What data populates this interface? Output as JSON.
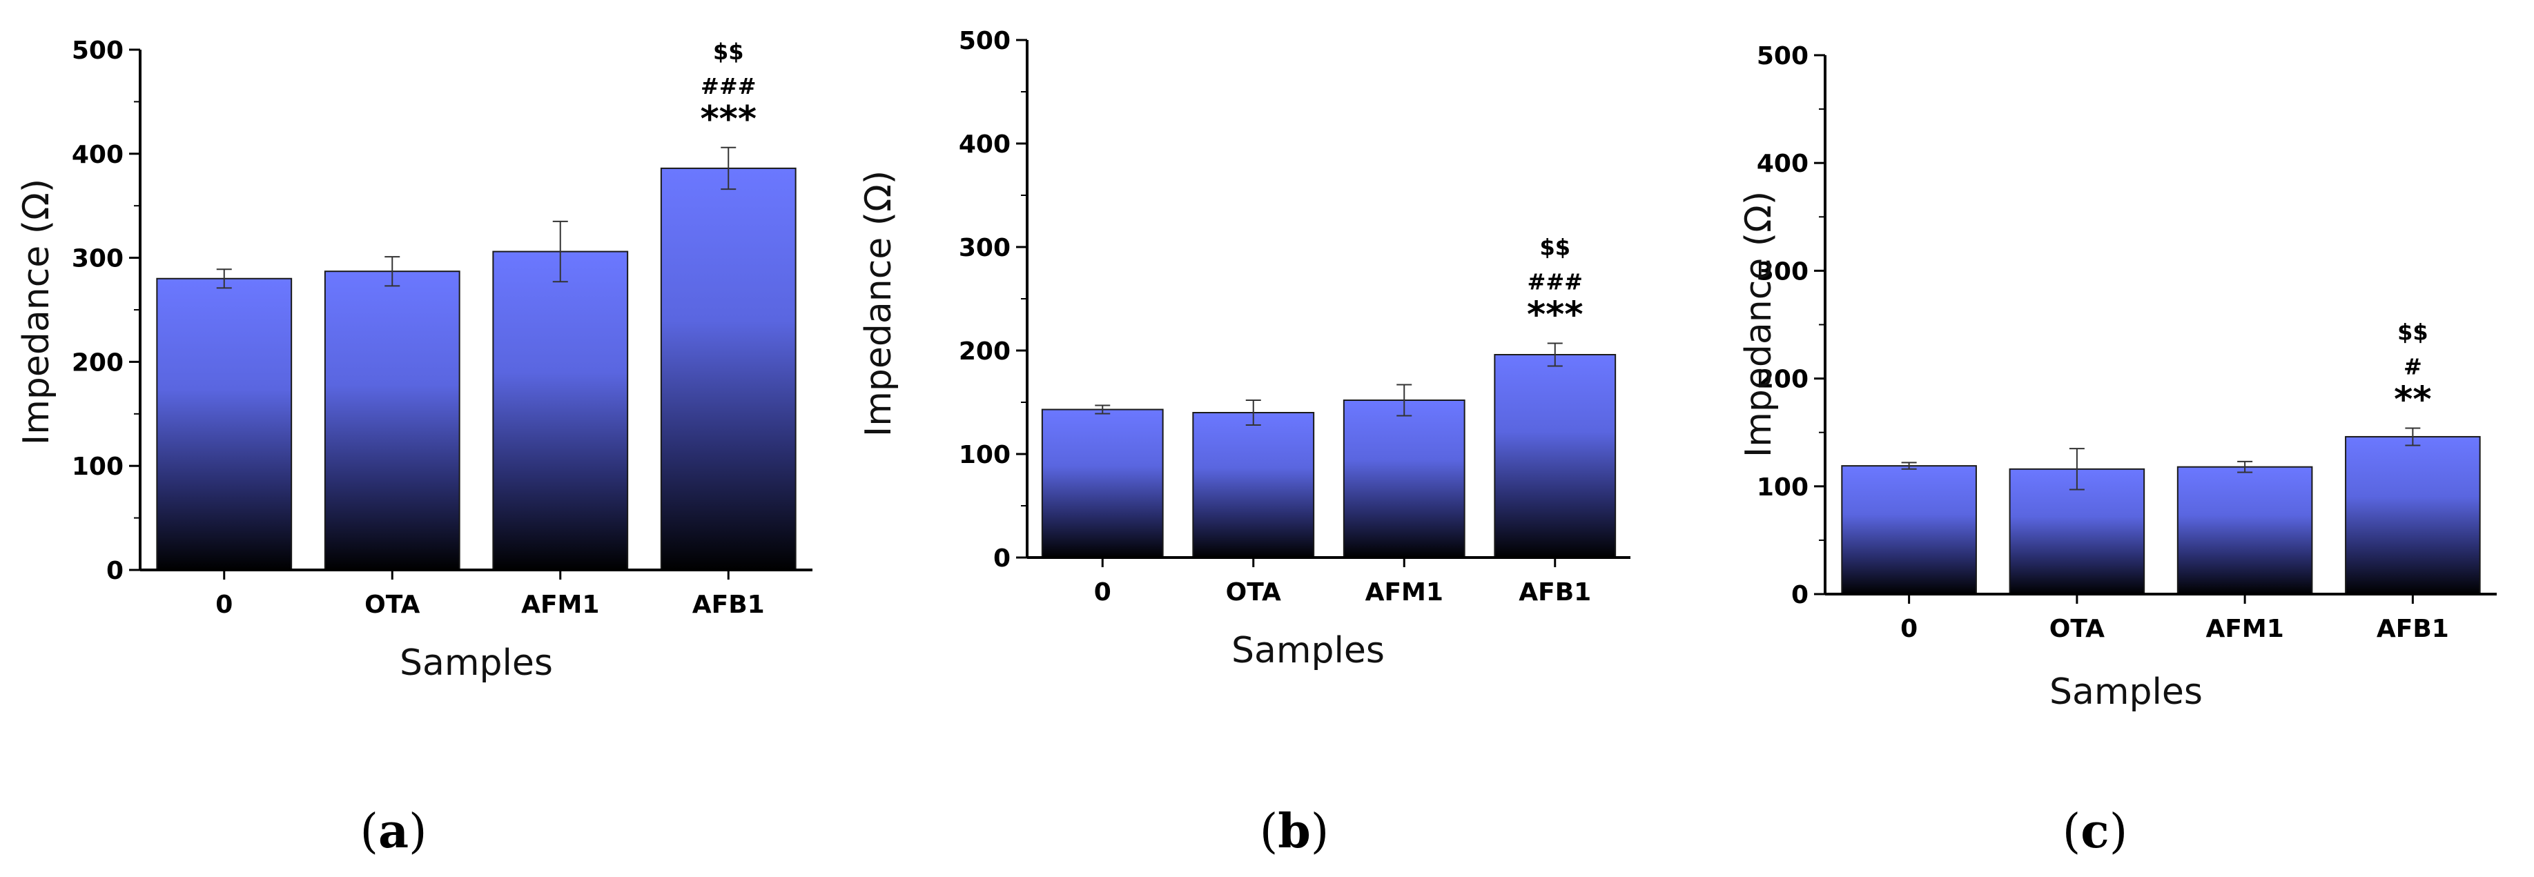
{
  "figure": {
    "panels": [
      {
        "open": "(",
        "letter": "a",
        "close": ")"
      },
      {
        "open": "(",
        "letter": "b",
        "close": ")"
      },
      {
        "open": "(",
        "letter": "c",
        "close": ")"
      }
    ]
  },
  "chart_data": [
    {
      "type": "bar",
      "panel": "a",
      "title": "",
      "xlabel": "Samples",
      "ylabel": "Impedance (Ω)",
      "categories": [
        "0",
        "OTA",
        "AFM1",
        "AFB1"
      ],
      "values": [
        280,
        287,
        306,
        386
      ],
      "errors": [
        9,
        14,
        29,
        20
      ],
      "ylim": [
        0,
        500
      ],
      "yticks": [
        "0",
        "100",
        "200",
        "300",
        "400",
        "500"
      ],
      "annotations": [
        {
          "category": "AFB1",
          "lines": [
            "$$",
            "###",
            "***"
          ]
        }
      ],
      "bar_gradient": [
        "#6b78ff",
        "#000000"
      ]
    },
    {
      "type": "bar",
      "panel": "b",
      "title": "",
      "xlabel": "Samples",
      "ylabel": "Impedance (Ω)",
      "categories": [
        "0",
        "OTA",
        "AFM1",
        "AFB1"
      ],
      "values": [
        143,
        140,
        152,
        196
      ],
      "errors": [
        4,
        12,
        15,
        11
      ],
      "ylim": [
        0,
        500
      ],
      "yticks": [
        "0",
        "100",
        "200",
        "300",
        "400",
        "500"
      ],
      "annotations": [
        {
          "category": "AFB1",
          "lines": [
            "$$",
            "###",
            "***"
          ]
        }
      ],
      "bar_gradient": [
        "#6b78ff",
        "#000000"
      ]
    },
    {
      "type": "bar",
      "panel": "c",
      "title": "",
      "xlabel": "Samples",
      "ylabel": "Impedance (Ω)",
      "categories": [
        "0",
        "OTA",
        "AFM1",
        "AFB1"
      ],
      "values": [
        119,
        116,
        118,
        146
      ],
      "errors": [
        3,
        19,
        5,
        8
      ],
      "ylim": [
        0,
        500
      ],
      "yticks": [
        "0",
        "100",
        "200",
        "300",
        "400",
        "500"
      ],
      "annotations": [
        {
          "category": "AFB1",
          "lines": [
            "$$",
            "#",
            "**"
          ]
        }
      ],
      "bar_gradient": [
        "#6b78ff",
        "#000000"
      ]
    }
  ]
}
